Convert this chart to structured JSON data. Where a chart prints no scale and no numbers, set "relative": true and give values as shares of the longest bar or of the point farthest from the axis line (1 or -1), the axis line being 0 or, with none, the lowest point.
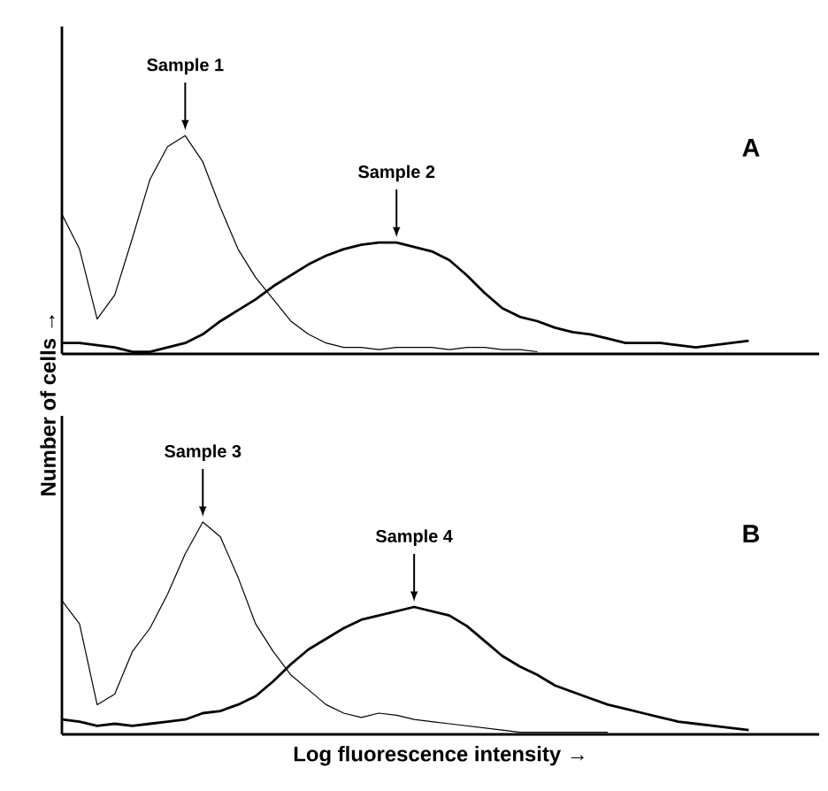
{
  "chart_data": [
    {
      "type": "line",
      "relative": true,
      "ylabel": "Number of cells →",
      "annotations": [
        "A"
      ],
      "categories": [
        null,
        null,
        null,
        null,
        null,
        null,
        null,
        null,
        null,
        null,
        null,
        null,
        null,
        null,
        null,
        null,
        null,
        null,
        null,
        null,
        null,
        null,
        null,
        null,
        null,
        null,
        null,
        null,
        null,
        null,
        null,
        null,
        null,
        null,
        null,
        null,
        null,
        null,
        null,
        null,
        null,
        null,
        null,
        null
      ],
      "series": [
        {
          "name": "Sample 1",
          "color": "#000000",
          "values": [
            0.64,
            0.48,
            0.16,
            0.27,
            0.53,
            0.8,
            0.95,
            1.0,
            0.88,
            0.67,
            0.48,
            0.35,
            0.25,
            0.15,
            0.09,
            0.05,
            0.03,
            0.03,
            0.02,
            0.03,
            0.03,
            0.03,
            0.02,
            0.03,
            0.03,
            0.02,
            0.02,
            0.01,
            null,
            null,
            null,
            null,
            null,
            null,
            null,
            null,
            null,
            null,
            null,
            null,
            null,
            null,
            null,
            null
          ]
        },
        {
          "name": "Sample 2",
          "color": "#000000",
          "values": [
            0.05,
            0.05,
            0.04,
            0.03,
            0.01,
            0.01,
            0.03,
            0.05,
            0.09,
            0.15,
            0.2,
            0.25,
            0.31,
            0.36,
            0.41,
            0.45,
            0.48,
            0.5,
            0.51,
            0.51,
            0.49,
            0.47,
            0.43,
            0.36,
            0.28,
            0.21,
            0.17,
            0.15,
            0.12,
            0.1,
            0.09,
            0.07,
            0.05,
            0.05,
            0.05,
            0.04,
            0.03,
            0.04,
            0.05,
            0.06,
            null,
            null,
            null,
            null
          ]
        }
      ]
    },
    {
      "type": "line",
      "relative": true,
      "xlabel": "Log fluorescence intensity →",
      "annotations": [
        "B"
      ],
      "categories": [
        null,
        null,
        null,
        null,
        null,
        null,
        null,
        null,
        null,
        null,
        null,
        null,
        null,
        null,
        null,
        null,
        null,
        null,
        null,
        null,
        null,
        null,
        null,
        null,
        null,
        null,
        null,
        null,
        null,
        null,
        null,
        null,
        null,
        null,
        null,
        null,
        null,
        null,
        null,
        null,
        null,
        null,
        null,
        null
      ],
      "series": [
        {
          "name": "Sample 3",
          "color": "#000000",
          "values": [
            0.63,
            0.52,
            0.14,
            0.19,
            0.39,
            0.5,
            0.66,
            0.85,
            1.0,
            0.93,
            0.74,
            0.52,
            0.39,
            0.28,
            0.21,
            0.14,
            0.1,
            0.08,
            0.1,
            0.09,
            0.07,
            0.06,
            0.05,
            0.04,
            0.03,
            0.02,
            0.01,
            0.01,
            0.01,
            0.01,
            0.01,
            0.01,
            null,
            null,
            null,
            null,
            null,
            null,
            null,
            null,
            null,
            null,
            null,
            null
          ]
        },
        {
          "name": "Sample 4",
          "color": "#000000",
          "values": [
            0.07,
            0.06,
            0.04,
            0.05,
            0.04,
            0.05,
            0.06,
            0.07,
            0.1,
            0.11,
            0.14,
            0.18,
            0.25,
            0.33,
            0.4,
            0.45,
            0.5,
            0.54,
            0.56,
            0.58,
            0.6,
            0.58,
            0.56,
            0.51,
            0.44,
            0.37,
            0.32,
            0.28,
            0.23,
            0.2,
            0.17,
            0.14,
            0.12,
            0.1,
            0.08,
            0.06,
            0.05,
            0.04,
            0.03,
            0.02,
            null,
            null,
            null,
            null
          ]
        }
      ]
    }
  ]
}
